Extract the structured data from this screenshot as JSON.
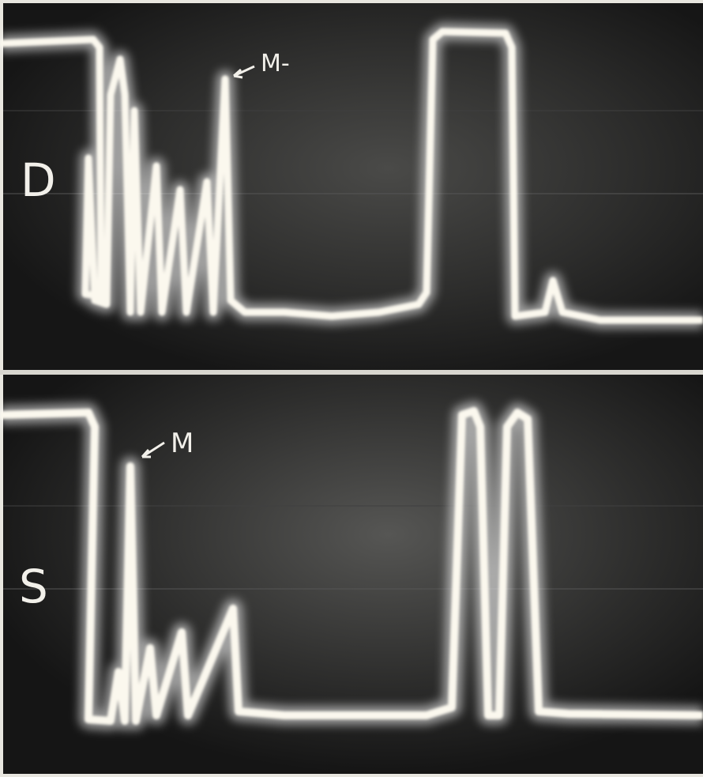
{
  "panels": [
    {
      "label": "D",
      "marker": "M-"
    },
    {
      "label": "S",
      "marker": "M"
    }
  ]
}
